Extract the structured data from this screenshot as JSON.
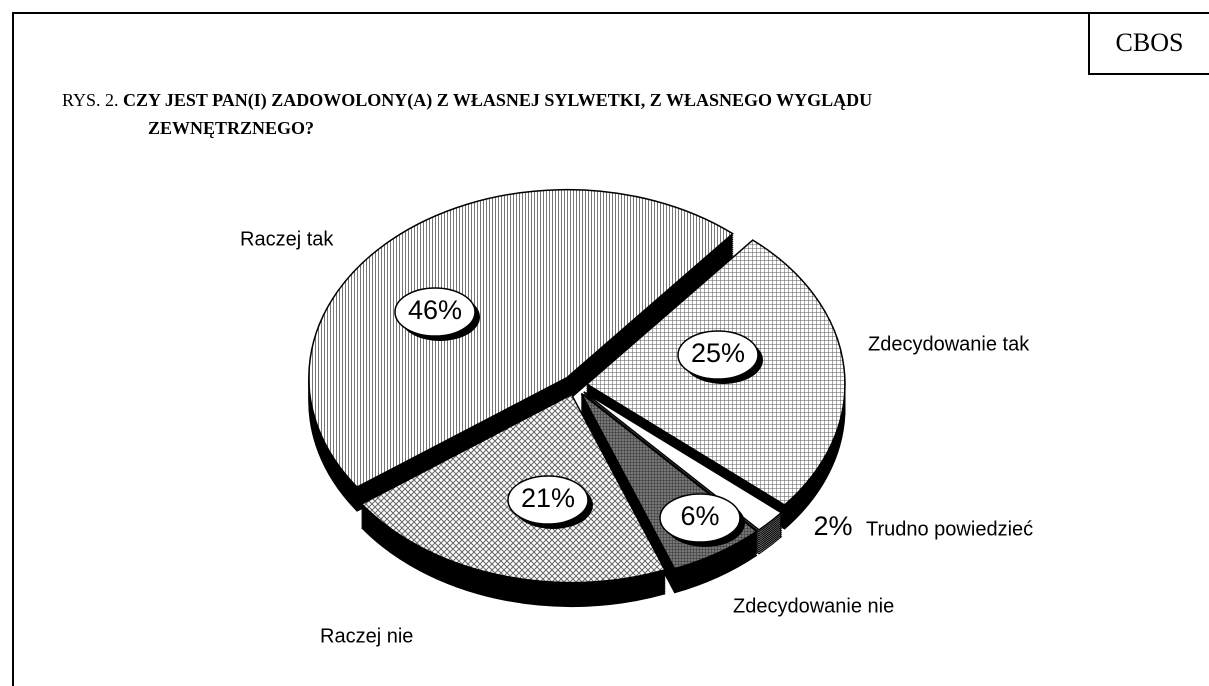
{
  "source": "CBOS",
  "chart_data": {
    "type": "pie",
    "figure_number": "RYS. 2.",
    "title": "CZY JEST PAN(I) ZADOWOLONY(A) Z WŁASNEJ SYLWETKI, Z WŁASNEGO WYGLĄDU ZEWNĘTRZNEGO?",
    "categories": [
      "Zdecydowanie tak",
      "Trudno powiedzieć",
      "Zdecydowanie nie",
      "Raczej nie",
      "Raczej tak"
    ],
    "values": [
      25,
      2,
      6,
      21,
      46
    ],
    "value_labels": [
      "25%",
      "2%",
      "6%",
      "21%",
      "46%"
    ]
  }
}
